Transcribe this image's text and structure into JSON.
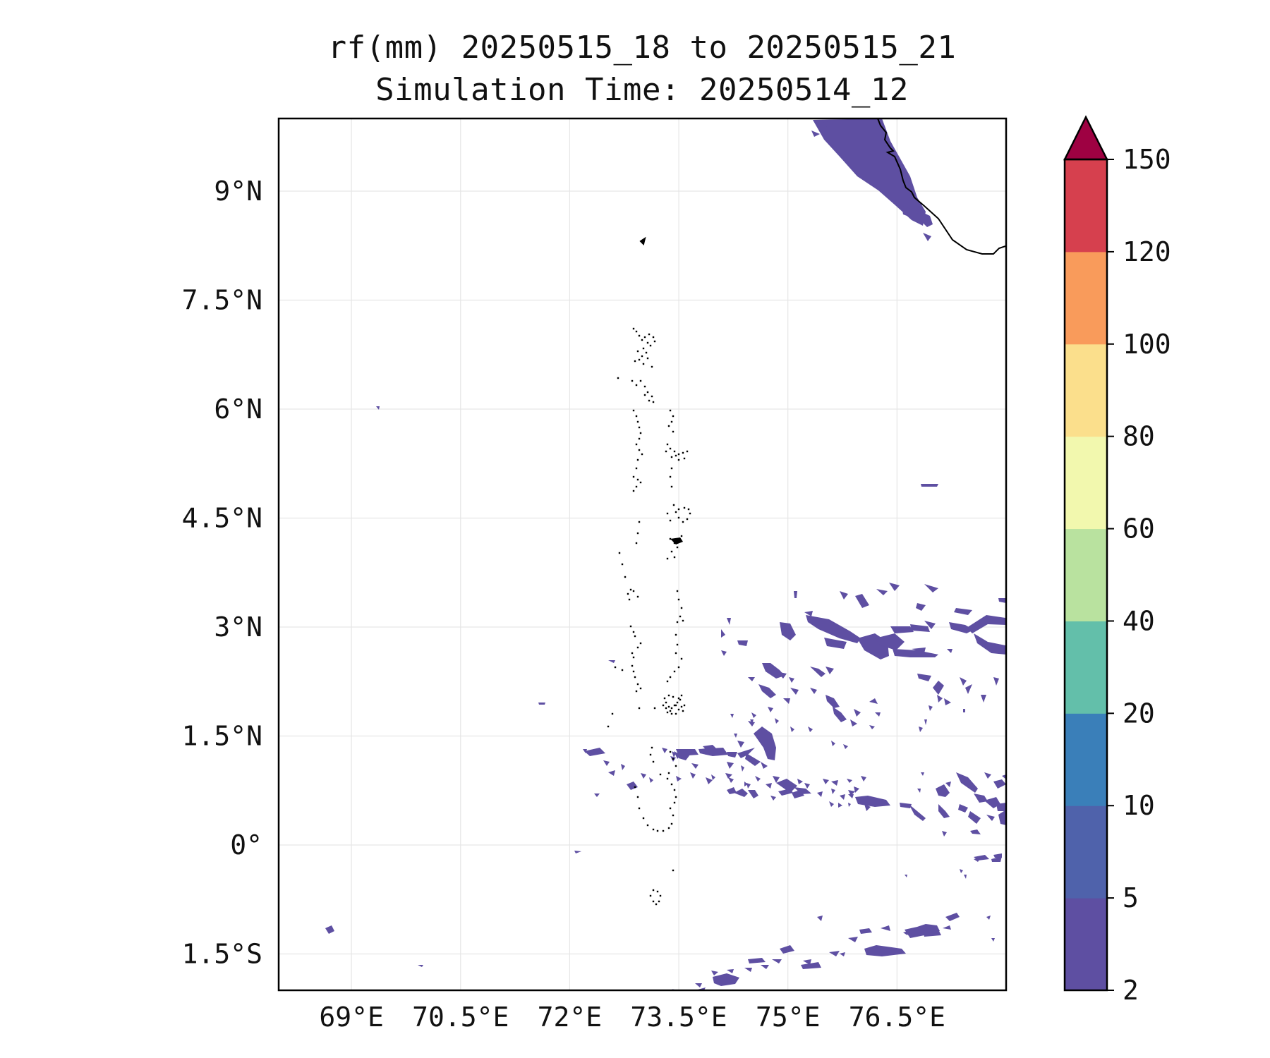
{
  "title": {
    "line1": "rf(mm) 20250515_18 to 20250515_21",
    "line2": "Simulation Time: 20250514_12"
  },
  "map": {
    "lon_range": [
      68.0,
      78.0
    ],
    "lat_range": [
      -2.0,
      10.0
    ],
    "lon_ticks": [
      69,
      70.5,
      72,
      73.5,
      75,
      76.5
    ],
    "lon_tick_labels": [
      "69°E",
      "70.5°E",
      "72°E",
      "73.5°E",
      "75°E",
      "76.5°E"
    ],
    "lat_ticks": [
      -1.5,
      0,
      1.5,
      3,
      4.5,
      6,
      7.5,
      9
    ],
    "lat_tick_labels": [
      "1.5°S",
      "0°",
      "1.5°N",
      "3°N",
      "4.5°N",
      "6°N",
      "7.5°N",
      "9°N"
    ],
    "grid": true,
    "rain_color": "#5e4fa2",
    "coastline_color": "#000000"
  },
  "colorbar": {
    "levels": [
      "2",
      "5",
      "10",
      "20",
      "40",
      "60",
      "80",
      "100",
      "120",
      "150"
    ],
    "colors": [
      "#5e4fa2",
      "#4f62ab",
      "#3a7fb9",
      "#63bfaa",
      "#b9e29f",
      "#f2f8ae",
      "#fbdf8c",
      "#f99b5b",
      "#d6404e",
      "#9e0142"
    ],
    "extend": "max"
  }
}
